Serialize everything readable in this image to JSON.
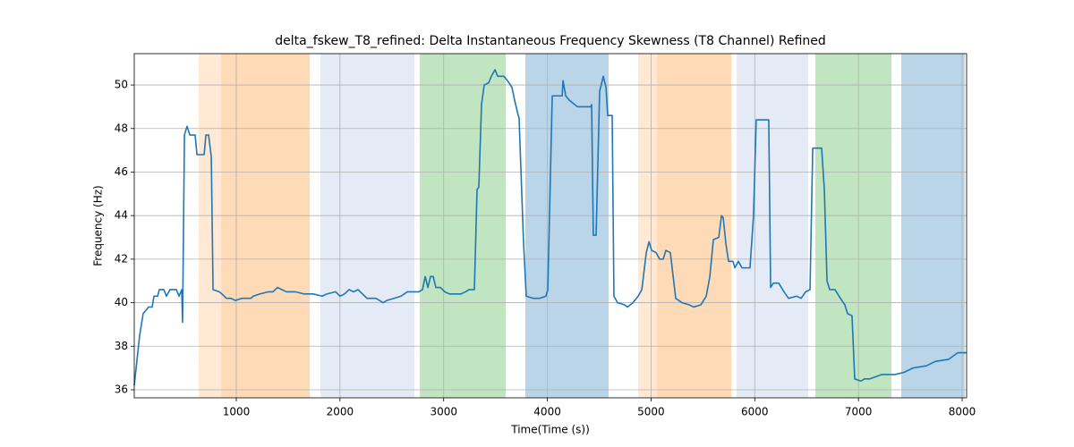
{
  "chart_data": {
    "type": "line",
    "title": "delta_fskew_T8_refined: Delta Instantaneous Frequency Skewness (T8 Channel) Refined",
    "x_label": "Time(Time (s))",
    "y_label": "Frequency (Hz)",
    "xlim": [
      16,
      8043
    ],
    "ylim": [
      35.63,
      51.44
    ],
    "xticks": [
      1000,
      2000,
      3000,
      4000,
      5000,
      6000,
      7000,
      8000
    ],
    "yticks": [
      36,
      38,
      40,
      42,
      44,
      46,
      48,
      50
    ],
    "grid": true,
    "color": "#1f77b4",
    "spans": [
      {
        "start": 638,
        "end": 854,
        "color": "#ffe8d4"
      },
      {
        "start": 854,
        "end": 1708,
        "color": "#ffdab6"
      },
      {
        "start": 1812,
        "end": 2718,
        "color": "#e4ebf6"
      },
      {
        "start": 2770,
        "end": 3598,
        "color": "#c1e4c1"
      },
      {
        "start": 3788,
        "end": 4591,
        "color": "#bad4e8"
      },
      {
        "start": 4876,
        "end": 5057,
        "color": "#ffe8d4"
      },
      {
        "start": 5057,
        "end": 5774,
        "color": "#ffdab6"
      },
      {
        "start": 5826,
        "end": 6516,
        "color": "#e4ebf6"
      },
      {
        "start": 6584,
        "end": 7318,
        "color": "#c1e4c1"
      },
      {
        "start": 7413,
        "end": 8026,
        "color": "#bad4e8"
      }
    ],
    "x": [
      16,
      68,
      102,
      154,
      189,
      206,
      241,
      258,
      301,
      327,
      361,
      422,
      448,
      474,
      482,
      500,
      525,
      553,
      603,
      621,
      690,
      707,
      733,
      759,
      776,
      836,
      862,
      905,
      949,
      992,
      1052,
      1139,
      1165,
      1225,
      1311,
      1354,
      1397,
      1440,
      1484,
      1570,
      1656,
      1742,
      1829,
      1872,
      1958,
      2001,
      2044,
      2088,
      2131,
      2174,
      2217,
      2261,
      2347,
      2416,
      2450,
      2520,
      2589,
      2649,
      2761,
      2796,
      2822,
      2848,
      2873,
      2899,
      2925,
      2968,
      3011,
      3055,
      3167,
      3210,
      3245,
      3296,
      3322,
      3339,
      3365,
      3391,
      3434,
      3460,
      3495,
      3521,
      3581,
      3615,
      3658,
      3684,
      3719,
      3727,
      3770,
      3796,
      3865,
      3926,
      3986,
      4004,
      4047,
      4143,
      4151,
      4177,
      4212,
      4290,
      4419,
      4427,
      4443,
      4470,
      4504,
      4539,
      4565,
      4582,
      4625,
      4642,
      4677,
      4746,
      4772,
      4825,
      4876,
      4911,
      4954,
      4980,
      5006,
      5048,
      5083,
      5117,
      5143,
      5186,
      5238,
      5299,
      5368,
      5411,
      5480,
      5532,
      5567,
      5601,
      5653,
      5679,
      5696,
      5722,
      5747,
      5790,
      5808,
      5842,
      5877,
      5954,
      5988,
      6014,
      6049,
      6135,
      6153,
      6179,
      6231,
      6282,
      6326,
      6404,
      6447,
      6490,
      6533,
      6559,
      6645,
      6671,
      6697,
      6723,
      6774,
      6826,
      6869,
      6895,
      6938,
      6964,
      7024,
      7059,
      7111,
      7223,
      7352,
      7439,
      7525,
      7655,
      7741,
      7870,
      7957,
      8043
    ],
    "values": [
      36.2,
      38.5,
      39.5,
      39.8,
      39.8,
      40.3,
      40.3,
      40.6,
      40.6,
      40.3,
      40.6,
      40.6,
      40.3,
      40.6,
      39.1,
      47.7,
      48.1,
      47.7,
      47.7,
      46.8,
      46.8,
      47.7,
      47.7,
      46.7,
      40.6,
      40.5,
      40.4,
      40.2,
      40.2,
      40.1,
      40.2,
      40.2,
      40.3,
      40.4,
      40.5,
      40.5,
      40.7,
      40.6,
      40.5,
      40.5,
      40.4,
      40.4,
      40.3,
      40.4,
      40.5,
      40.3,
      40.4,
      40.6,
      40.5,
      40.6,
      40.4,
      40.2,
      40.2,
      40.0,
      40.1,
      40.2,
      40.3,
      40.5,
      40.5,
      40.6,
      41.2,
      40.7,
      41.2,
      41.2,
      40.7,
      40.7,
      40.5,
      40.4,
      40.4,
      40.5,
      40.6,
      40.6,
      45.2,
      45.3,
      49.1,
      50.0,
      50.1,
      50.4,
      50.7,
      50.4,
      50.4,
      50.2,
      49.9,
      49.3,
      48.6,
      48.5,
      42.8,
      40.3,
      40.2,
      40.2,
      40.3,
      40.6,
      49.5,
      49.5,
      50.2,
      49.5,
      49.3,
      49.0,
      49.0,
      49.1,
      43.1,
      43.1,
      49.7,
      50.4,
      49.9,
      48.6,
      48.6,
      40.3,
      40.0,
      39.9,
      39.8,
      40.0,
      40.3,
      40.6,
      42.3,
      42.8,
      42.4,
      42.3,
      42.0,
      42.0,
      42.4,
      42.3,
      40.2,
      40.0,
      39.9,
      39.8,
      39.9,
      40.3,
      41.2,
      42.9,
      43.0,
      44.0,
      43.9,
      42.7,
      41.9,
      41.9,
      41.6,
      41.9,
      41.6,
      41.6,
      44.0,
      48.4,
      48.4,
      48.4,
      40.7,
      40.9,
      40.9,
      40.5,
      40.2,
      40.3,
      40.2,
      40.5,
      40.6,
      47.1,
      47.1,
      45.2,
      41.0,
      40.6,
      40.6,
      40.2,
      39.9,
      39.5,
      39.4,
      36.5,
      36.4,
      36.5,
      36.5,
      36.7,
      36.7,
      36.8,
      37.0,
      37.1,
      37.3,
      37.4,
      37.7,
      37.7
    ]
  }
}
